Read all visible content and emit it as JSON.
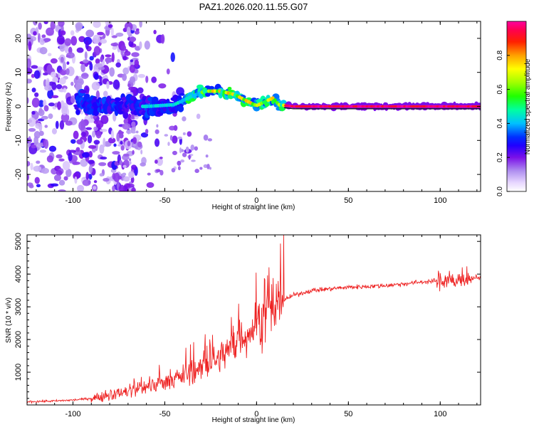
{
  "figure": {
    "title": "PAZ1.2026.020.11.55.G07"
  },
  "colors": {
    "snr_line": "#ee2222",
    "axis": "#000000",
    "ridge": "#111111"
  },
  "chart_data": [
    {
      "type": "heatmap",
      "xlabel": "Height of straight line (km)",
      "ylabel": "Frequency (Hz)",
      "xlim": [
        -125,
        122
      ],
      "ylim": [
        -25,
        25
      ],
      "x_ticks": [
        -100,
        -50,
        0,
        50,
        100
      ],
      "x_tick_labels": [
        "-100",
        "-50",
        "0",
        "50",
        "100"
      ],
      "y_ticks": [
        -20,
        -10,
        0,
        10,
        20
      ],
      "y_tick_labels": [
        "-20",
        "-10",
        "0",
        "10",
        "20"
      ],
      "ridge_frequency_profile": [
        [
          -95,
          1.5
        ],
        [
          -80,
          0
        ],
        [
          -60,
          0
        ],
        [
          -45,
          0.5
        ],
        [
          -35,
          3
        ],
        [
          -28,
          4.5
        ],
        [
          -20,
          4.5
        ],
        [
          -12,
          3.5
        ],
        [
          -5,
          1.5
        ],
        [
          0,
          0.2
        ],
        [
          5,
          1.5
        ],
        [
          9,
          2.5
        ],
        [
          12,
          0.5
        ],
        [
          20,
          0
        ],
        [
          60,
          0
        ],
        [
          100,
          0
        ],
        [
          122,
          0
        ]
      ],
      "colorbar": {
        "label": "Normalized spectral amplitude",
        "range": [
          0,
          1
        ],
        "ticks": [
          0.0,
          0.2,
          0.4,
          0.6,
          0.8
        ],
        "tick_labels": [
          "0.0",
          "0.2",
          "0.4",
          "0.6",
          "0.8"
        ],
        "colormap": [
          "#ffffff",
          "#e8d8ff",
          "#b090f0",
          "#7a10e8",
          "#3000ff",
          "#0000ff",
          "#00c0ff",
          "#00ffa0",
          "#20ff00",
          "#a0ff00",
          "#ffff00",
          "#ffa000",
          "#ff2000",
          "#ff0040",
          "#ff00a0"
        ]
      }
    },
    {
      "type": "line",
      "xlabel": "Height of straight line (km)",
      "ylabel": "SNR (10 * v/v)",
      "xlim": [
        -125,
        122
      ],
      "ylim": [
        0,
        5200
      ],
      "x_ticks": [
        -100,
        -50,
        0,
        50,
        100
      ],
      "x_tick_labels": [
        "-100",
        "-50",
        "0",
        "50",
        "100"
      ],
      "y_ticks": [
        1000,
        2000,
        3000,
        4000,
        5000
      ],
      "y_tick_labels": [
        "1000",
        "2000",
        "3000",
        "4000",
        "5000"
      ],
      "series": [
        {
          "name": "SNR",
          "x": [
            -125,
            -110,
            -100,
            -90,
            -80,
            -70,
            -60,
            -50,
            -40,
            -30,
            -20,
            -15,
            -10,
            -5,
            0,
            5,
            10,
            15,
            20,
            30,
            40,
            50,
            60,
            70,
            80,
            90,
            100,
            110,
            122
          ],
          "y": [
            100,
            120,
            150,
            200,
            300,
            400,
            550,
            700,
            900,
            1100,
            1450,
            1700,
            1950,
            2200,
            2450,
            2700,
            3000,
            3200,
            3350,
            3500,
            3550,
            3600,
            3620,
            3650,
            3700,
            3760,
            3800,
            3850,
            3900
          ]
        }
      ]
    }
  ]
}
